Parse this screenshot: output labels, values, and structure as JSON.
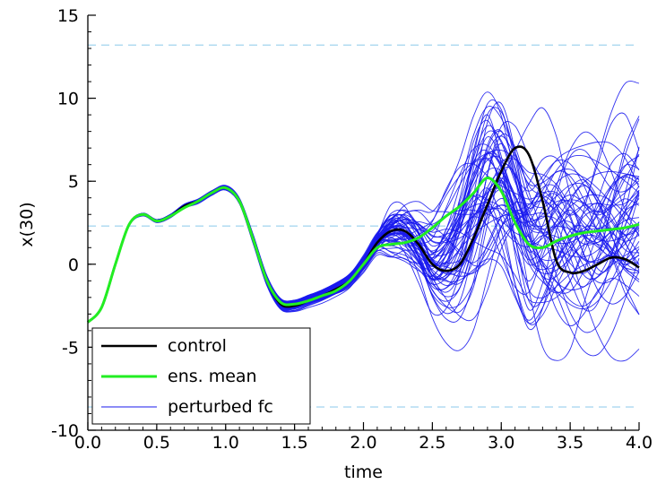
{
  "chart_data": {
    "type": "line",
    "xlabel": "time",
    "ylabel": "x(30)",
    "xlim": [
      0.0,
      4.0
    ],
    "ylim": [
      -10,
      15
    ],
    "x_ticks": [
      "0.0",
      "0.5",
      "1.0",
      "1.5",
      "2.0",
      "2.5",
      "3.0",
      "3.5",
      "4.0"
    ],
    "y_ticks": [
      "-10",
      "-5",
      "0",
      "5",
      "10",
      "15"
    ],
    "reference_lines_y": [
      13.2,
      2.3,
      -8.6
    ],
    "legend": {
      "placement": "bottom-left",
      "entries": [
        "control",
        "ens. mean",
        "perturbed fc"
      ]
    },
    "colors": {
      "control": "#000000",
      "ens_mean": "#22ee22",
      "perturbed": "#1a1aee",
      "reference": "#aad8f0"
    },
    "ensemble_size": 60,
    "x": [
      0.0,
      0.1,
      0.2,
      0.3,
      0.4,
      0.5,
      0.6,
      0.7,
      0.8,
      0.9,
      1.0,
      1.1,
      1.2,
      1.3,
      1.4,
      1.5,
      1.6,
      1.7,
      1.8,
      1.9,
      2.0,
      2.1,
      2.2,
      2.3,
      2.4,
      2.5,
      2.6,
      2.7,
      2.8,
      2.9,
      3.0,
      3.1,
      3.2,
      3.3,
      3.4,
      3.5,
      3.6,
      3.7,
      3.8,
      3.9,
      4.0
    ],
    "series": [
      {
        "name": "control",
        "values": [
          -3.5,
          -2.6,
          0.0,
          2.4,
          3.0,
          2.6,
          2.9,
          3.5,
          3.8,
          4.3,
          4.6,
          3.8,
          1.5,
          -1.0,
          -2.4,
          -2.5,
          -2.2,
          -1.9,
          -1.5,
          -1.0,
          0.0,
          1.3,
          2.0,
          2.0,
          1.2,
          0.0,
          -0.4,
          0.0,
          1.6,
          3.6,
          5.6,
          7.0,
          6.6,
          3.8,
          0.2,
          -0.5,
          -0.4,
          0.0,
          0.4,
          0.3,
          -0.2
        ]
      },
      {
        "name": "ens. mean",
        "values": [
          -3.5,
          -2.6,
          0.0,
          2.4,
          3.0,
          2.6,
          2.9,
          3.4,
          3.8,
          4.3,
          4.6,
          3.8,
          1.5,
          -1.0,
          -2.3,
          -2.4,
          -2.2,
          -1.9,
          -1.6,
          -1.0,
          0.0,
          1.0,
          1.2,
          1.3,
          1.6,
          2.2,
          2.9,
          3.5,
          4.3,
          5.2,
          4.4,
          2.5,
          1.2,
          1.0,
          1.4,
          1.7,
          1.9,
          2.0,
          2.1,
          2.2,
          2.4
        ]
      }
    ]
  }
}
